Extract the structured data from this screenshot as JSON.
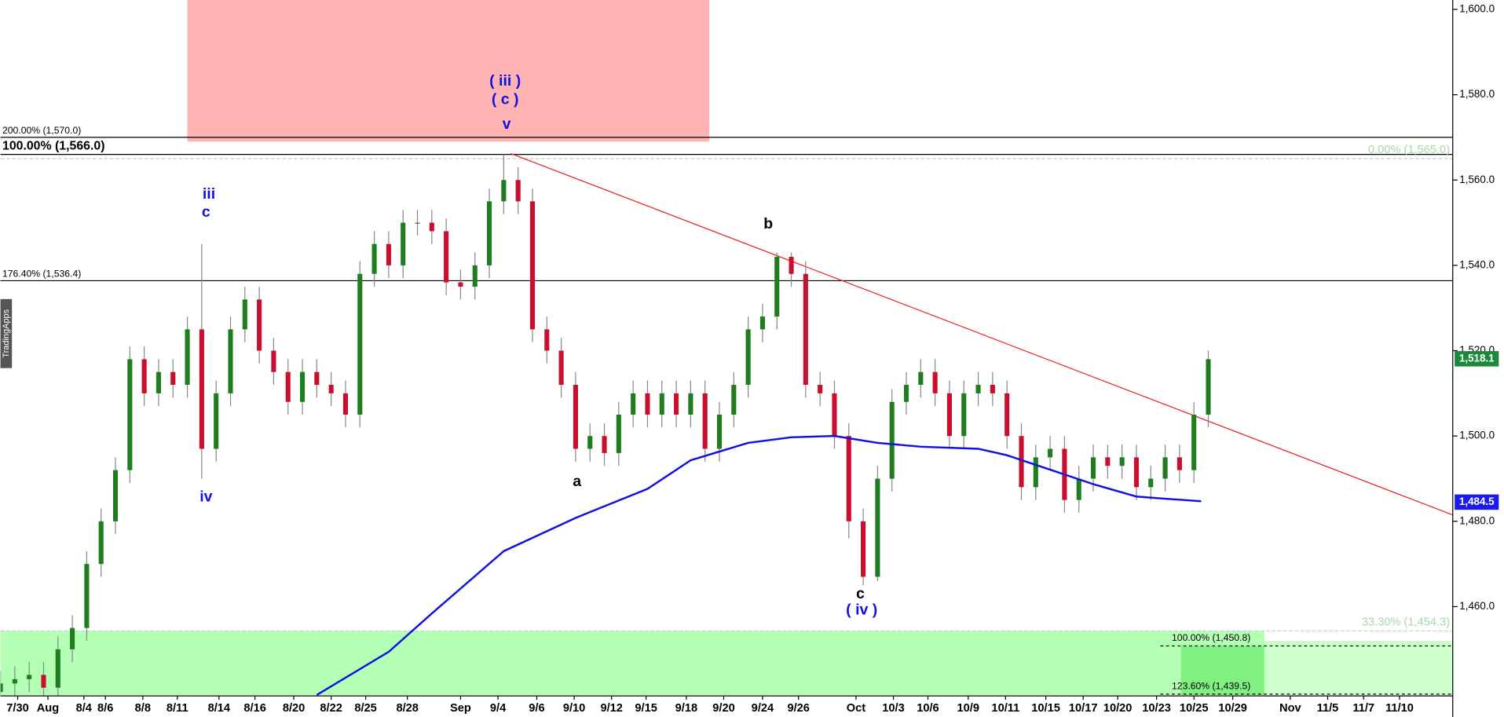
{
  "chart_data": {
    "type": "candlestick",
    "watermark": "TradingApps",
    "xlim": [
      0,
      101
    ],
    "ylim": [
      1439.3,
      1602.2
    ],
    "yticks": [
      {
        "value": 1460,
        "label": "1,460.0"
      },
      {
        "value": 1480,
        "label": "1,480.0"
      },
      {
        "value": 1500,
        "label": "1,500.0"
      },
      {
        "value": 1520,
        "label": "1,520.0"
      },
      {
        "value": 1540,
        "label": "1,540.0"
      },
      {
        "value": 1560,
        "label": "1,560.0"
      },
      {
        "value": 1580,
        "label": "1,580.0"
      },
      {
        "value": 1600,
        "label": "1,600.0"
      }
    ],
    "xticks": [
      {
        "value": 1.2,
        "label": "7/30"
      },
      {
        "value": 3.3,
        "label": "Aug"
      },
      {
        "value": 5.8,
        "label": "8/4"
      },
      {
        "value": 7.3,
        "label": "8/6"
      },
      {
        "value": 9.9,
        "label": "8/8"
      },
      {
        "value": 12.3,
        "label": "8/11"
      },
      {
        "value": 15.2,
        "label": "8/14"
      },
      {
        "value": 17.7,
        "label": "8/16"
      },
      {
        "value": 20.4,
        "label": "8/20"
      },
      {
        "value": 23,
        "label": "8/22"
      },
      {
        "value": 25.4,
        "label": "8/25"
      },
      {
        "value": 28.3,
        "label": "8/28"
      },
      {
        "value": 32,
        "label": "Sep"
      },
      {
        "value": 34.6,
        "label": "9/4"
      },
      {
        "value": 37.3,
        "label": "9/6"
      },
      {
        "value": 39.9,
        "label": "9/10"
      },
      {
        "value": 42.5,
        "label": "9/12"
      },
      {
        "value": 44.9,
        "label": "9/15"
      },
      {
        "value": 47.7,
        "label": "9/18"
      },
      {
        "value": 50.3,
        "label": "9/20"
      },
      {
        "value": 53,
        "label": "9/24"
      },
      {
        "value": 55.5,
        "label": "9/26"
      },
      {
        "value": 59.5,
        "label": "Oct"
      },
      {
        "value": 62.1,
        "label": "10/3"
      },
      {
        "value": 64.5,
        "label": "10/6"
      },
      {
        "value": 67.3,
        "label": "10/9"
      },
      {
        "value": 69.9,
        "label": "10/11"
      },
      {
        "value": 72.7,
        "label": "10/15"
      },
      {
        "value": 75.3,
        "label": "10/17"
      },
      {
        "value": 77.7,
        "label": "10/20"
      },
      {
        "value": 80.4,
        "label": "10/23"
      },
      {
        "value": 83,
        "label": "10/25"
      },
      {
        "value": 85.7,
        "label": "10/29"
      },
      {
        "value": 89.7,
        "label": "Nov"
      },
      {
        "value": 92.3,
        "label": "11/5"
      },
      {
        "value": 94.8,
        "label": "11/7"
      },
      {
        "value": 97.3,
        "label": "11/10"
      }
    ],
    "up_color": "#1e7d1e",
    "down_color": "#c8102e",
    "x": [
      0,
      1,
      2,
      3,
      4,
      5,
      6,
      7,
      8,
      9,
      10,
      11,
      12,
      13,
      14,
      15,
      16,
      17,
      18,
      19,
      20,
      21,
      22,
      23,
      24,
      25,
      26,
      27,
      28,
      29,
      30,
      31,
      32,
      33,
      34,
      35,
      36,
      37,
      38,
      39,
      40,
      41,
      42,
      43,
      44,
      45,
      46,
      47,
      48,
      49,
      50,
      51,
      52,
      53,
      54,
      55,
      56,
      57,
      58,
      59,
      60,
      61,
      62,
      63,
      64,
      65,
      66,
      67,
      68,
      69,
      70,
      71,
      72,
      73,
      74,
      75,
      76,
      77,
      78,
      79,
      80,
      81,
      82,
      83,
      84
    ],
    "open": [
      1440,
      1442,
      1443,
      1444,
      1441,
      1450,
      1455,
      1470,
      1480,
      1492,
      1518,
      1510,
      1515,
      1512,
      1525,
      1497,
      1510,
      1525,
      1532,
      1520,
      1515,
      1508,
      1515,
      1512,
      1510,
      1505,
      1538,
      1545,
      1540,
      1550,
      1550,
      1548,
      1536,
      1535,
      1540,
      1555,
      1560,
      1555,
      1525,
      1520,
      1512,
      1497,
      1500,
      1496,
      1505,
      1510,
      1505,
      1510,
      1505,
      1510,
      1497,
      1505,
      1512,
      1525,
      1528,
      1542,
      1538,
      1512,
      1510,
      1500,
      1480,
      1467,
      1490,
      1508,
      1512,
      1515,
      1510,
      1500,
      1510,
      1512,
      1510,
      1500,
      1488,
      1495,
      1497,
      1485,
      1490,
      1495,
      1493,
      1495,
      1488,
      1490,
      1495,
      1492,
      1505
    ],
    "high": [
      1445,
      1446,
      1447,
      1447,
      1453,
      1458,
      1473,
      1483,
      1495,
      1521,
      1521,
      1518,
      1518,
      1528,
      1545,
      1513,
      1528,
      1535,
      1535,
      1523,
      1518,
      1518,
      1518,
      1515,
      1513,
      1541,
      1548,
      1548,
      1553,
      1553,
      1553,
      1551,
      1539,
      1543,
      1558,
      1566,
      1563,
      1558,
      1528,
      1523,
      1515,
      1503,
      1503,
      1508,
      1513,
      1513,
      1513,
      1513,
      1513,
      1513,
      1508,
      1515,
      1528,
      1531,
      1543,
      1543,
      1541,
      1515,
      1513,
      1503,
      1483,
      1493,
      1511,
      1515,
      1518,
      1518,
      1513,
      1513,
      1515,
      1515,
      1513,
      1503,
      1498,
      1500,
      1500,
      1493,
      1498,
      1498,
      1498,
      1498,
      1493,
      1498,
      1498,
      1508,
      1520
    ],
    "low": [
      1438,
      1439,
      1440,
      1438,
      1438,
      1447,
      1452,
      1467,
      1477,
      1489,
      1507,
      1507,
      1509,
      1509,
      1490,
      1494,
      1507,
      1522,
      1517,
      1512,
      1505,
      1505,
      1509,
      1507,
      1502,
      1502,
      1535,
      1537,
      1537,
      1547,
      1545,
      1533,
      1532,
      1532,
      1537,
      1552,
      1552,
      1522,
      1517,
      1509,
      1494,
      1494,
      1493,
      1493,
      1502,
      1502,
      1502,
      1502,
      1502,
      1494,
      1494,
      1502,
      1509,
      1522,
      1525,
      1535,
      1509,
      1507,
      1497,
      1476,
      1465,
      1466,
      1487,
      1505,
      1509,
      1507,
      1497,
      1497,
      1507,
      1507,
      1497,
      1485,
      1485,
      1492,
      1482,
      1482,
      1487,
      1490,
      1490,
      1485,
      1485,
      1487,
      1489,
      1489,
      1502
    ],
    "close": [
      1442,
      1443,
      1444,
      1441,
      1450,
      1455,
      1470,
      1480,
      1492,
      1518,
      1510,
      1515,
      1512,
      1525,
      1497,
      1510,
      1525,
      1532,
      1520,
      1515,
      1508,
      1515,
      1512,
      1510,
      1505,
      1538,
      1545,
      1540,
      1550,
      1550,
      1548,
      1536,
      1535,
      1540,
      1555,
      1560,
      1555,
      1525,
      1520,
      1512,
      1497,
      1500,
      1496,
      1505,
      1510,
      1505,
      1510,
      1505,
      1510,
      1497,
      1505,
      1512,
      1525,
      1528,
      1542,
      1538,
      1512,
      1510,
      1500,
      1480,
      1467,
      1490,
      1508,
      1512,
      1515,
      1510,
      1500,
      1510,
      1512,
      1510,
      1500,
      1488,
      1495,
      1497,
      1485,
      1490,
      1495,
      1493,
      1495,
      1488,
      1490,
      1495,
      1492,
      1505,
      1518
    ],
    "ma": {
      "color": "#1010e0",
      "x": [
        22,
        27,
        30,
        35,
        40,
        45,
        48,
        52,
        55,
        58,
        61,
        64,
        68,
        70,
        73,
        76,
        79,
        81,
        83.5
      ],
      "values": [
        1439.3,
        1449.4,
        1458.4,
        1473,
        1480.8,
        1487.6,
        1494.3,
        1498.4,
        1499.7,
        1500,
        1498.4,
        1497.5,
        1497,
        1495.5,
        1492.1,
        1488.7,
        1485.8,
        1485.3,
        1484.7
      ]
    },
    "trendline": {
      "color": "#ee2222",
      "x": [
        35.5,
        101
      ],
      "values": [
        1566.2,
        1481.5
      ]
    },
    "zones": [
      {
        "xlim": [
          13,
          49.3
        ],
        "ylim": [
          1569,
          1602.2
        ],
        "color": "#ffb3b3"
      },
      {
        "xlim": [
          0,
          87.9
        ],
        "ylim": [
          1439.3,
          1454.3
        ],
        "color": "#b3ffb3"
      },
      {
        "xlim": [
          82.1,
          87.9
        ],
        "ylim": [
          1439.3,
          1450.8
        ],
        "color": "#80f080"
      },
      {
        "xlim": [
          87.9,
          101
        ],
        "ylim": [
          1439.3,
          1452
        ],
        "color": "#ccffcc"
      }
    ],
    "levels": [
      {
        "label": "200.00% (1,570.0)",
        "value": 1570,
        "style": "solid",
        "color": "#000000",
        "label_side": "left",
        "size": "small"
      },
      {
        "label": "100.00% (1,566.0)",
        "value": 1566,
        "style": "solid",
        "color": "#000000",
        "label_side": "left",
        "size": "large"
      },
      {
        "label": "176.40% (1,536.4)",
        "value": 1536.4,
        "style": "solid",
        "color": "#000000",
        "label_side": "left",
        "size": "small"
      },
      {
        "label": "0.00% (1,565.0)",
        "value": 1565,
        "style": "dashed",
        "color": "#a8d8a8",
        "label_side": "right",
        "size": "medium"
      },
      {
        "label": "33.30% (1,454.3)",
        "value": 1454.3,
        "style": "dashed",
        "color": "#a8d8a8",
        "label_side": "right",
        "size": "medium"
      },
      {
        "label": "100.00% (1,450.8)",
        "value": 1450.8,
        "style": "dotted",
        "color": "#000000",
        "label_side": "zone",
        "size": "small"
      },
      {
        "label": "123.60% (1,439.5)",
        "value": 1439.5,
        "style": "dotted",
        "color": "#000000",
        "label_side": "zone",
        "size": "small"
      }
    ],
    "price_badges": [
      {
        "label": "1,518.1",
        "value": 1518.1,
        "color": "#1a8a3a"
      },
      {
        "label": "1,484.5",
        "value": 1484.5,
        "color": "#1a1aee"
      }
    ],
    "annotations": [
      {
        "text": "iii",
        "x": 14.5,
        "y": 1556.6,
        "color": "#1010e0"
      },
      {
        "text": "c",
        "x": 14.3,
        "y": 1552.3,
        "color": "#1010e0"
      },
      {
        "text": "iv",
        "x": 14.3,
        "y": 1485.6,
        "color": "#1010e0"
      },
      {
        "text": "( iii )",
        "x": 35.1,
        "y": 1583.1,
        "color": "#1010e0"
      },
      {
        "text": "( c )",
        "x": 35.1,
        "y": 1578.8,
        "color": "#1010e0"
      },
      {
        "text": "v",
        "x": 35.2,
        "y": 1573,
        "color": "#1010e0"
      },
      {
        "text": "b",
        "x": 53.4,
        "y": 1549.6,
        "color": "#000000"
      },
      {
        "text": "a",
        "x": 40.1,
        "y": 1489.2,
        "color": "#000000"
      },
      {
        "text": "c",
        "x": 59.8,
        "y": 1462.9,
        "color": "#000000"
      },
      {
        "text": "( iv )",
        "x": 59.9,
        "y": 1459.1,
        "color": "#1010e0"
      }
    ]
  }
}
